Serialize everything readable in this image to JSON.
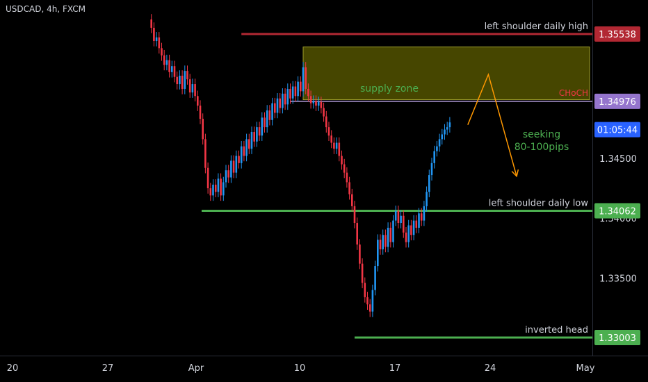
{
  "title": "USDCAD, 4h, FXCM",
  "chart_data": {
    "type": "candlestick",
    "symbol": "USDCAD",
    "timeframe": "4h",
    "source": "FXCM",
    "ylim": [
      1.3285,
      1.3563
    ],
    "x_ticks": [
      "20",
      "27",
      "Apr",
      "10",
      "17",
      "24",
      "May"
    ],
    "y_ticks": [
      "1.34500",
      "1.34000",
      "1.33500"
    ],
    "price_labels": [
      {
        "value": 1.35538,
        "text": "1.35538",
        "color": "#b22833"
      },
      {
        "value": 1.34976,
        "text": "1.34976",
        "color": "#9575cd"
      },
      {
        "value": 1.3474,
        "text": "01:05:44",
        "color": "#2962ff"
      },
      {
        "value": 1.34062,
        "text": "1.34062",
        "color": "#4caf50"
      },
      {
        "value": 1.33003,
        "text": "1.33003",
        "color": "#4caf50"
      }
    ],
    "levels": [
      {
        "name": "left shoulder daily high",
        "value": 1.35538,
        "color": "#b22833",
        "start_index": 36
      },
      {
        "name": "left shoulder daily low",
        "value": 1.34062,
        "color": "#4caf50",
        "start_index": 0
      },
      {
        "name": "inverted head",
        "value": 1.33003,
        "color": "#4caf50",
        "start_index": 80
      }
    ],
    "choch": {
      "label": "CHoCH",
      "value": 1.34976,
      "color": "#f23645",
      "start_index": 42
    },
    "supply_zone": {
      "label": "supply zone",
      "top": 1.3543,
      "bottom": 1.3499,
      "start_index": 60,
      "color": "#808000"
    },
    "projection": {
      "label": "seeking\n80-100pips",
      "points": [
        [
          124,
          1.3478
        ],
        [
          132,
          1.352
        ],
        [
          143,
          1.3435
        ]
      ],
      "color": "#ff9800"
    },
    "colors": {
      "up": "#2196f3",
      "down": "#f23645"
    },
    "candles": [
      1.3566,
      1.3559,
      1.3548,
      1.3551,
      1.3542,
      1.3536,
      1.3528,
      1.3532,
      1.3522,
      1.3527,
      1.3518,
      1.3512,
      1.3519,
      1.3508,
      1.3523,
      1.3516,
      1.3505,
      1.3512,
      1.3502,
      1.3494,
      1.3483,
      1.3466,
      1.3442,
      1.3425,
      1.3419,
      1.3428,
      1.3422,
      1.3433,
      1.3419,
      1.343,
      1.344,
      1.3434,
      1.3448,
      1.3438,
      1.3452,
      1.3446,
      1.346,
      1.3452,
      1.3466,
      1.3458,
      1.3472,
      1.3464,
      1.3476,
      1.3469,
      1.3484,
      1.3476,
      1.349,
      1.3482,
      1.3496,
      1.3488,
      1.35,
      1.3492,
      1.3504,
      1.3495,
      1.3508,
      1.35,
      1.351,
      1.3502,
      1.3514,
      1.3506,
      1.3526,
      1.3508,
      1.3502,
      1.3496,
      1.3498,
      1.3494,
      1.3497,
      1.3492,
      1.3485,
      1.3476,
      1.3469,
      1.3463,
      1.3458,
      1.3463,
      1.3452,
      1.3445,
      1.3438,
      1.343,
      1.342,
      1.341,
      1.3396,
      1.3378,
      1.3362,
      1.3346,
      1.3334,
      1.3328,
      1.3322,
      1.334,
      1.336,
      1.3382,
      1.3374,
      1.3386,
      1.3376,
      1.3392,
      1.338,
      1.3398,
      1.3406,
      1.3396,
      1.3402,
      1.3388,
      1.338,
      1.3394,
      1.3386,
      1.3398,
      1.3392,
      1.3404,
      1.3398,
      1.341,
      1.3422,
      1.3436,
      1.3446,
      1.3456,
      1.346,
      1.3466,
      1.347,
      1.3474,
      1.3476,
      1.348
    ]
  }
}
